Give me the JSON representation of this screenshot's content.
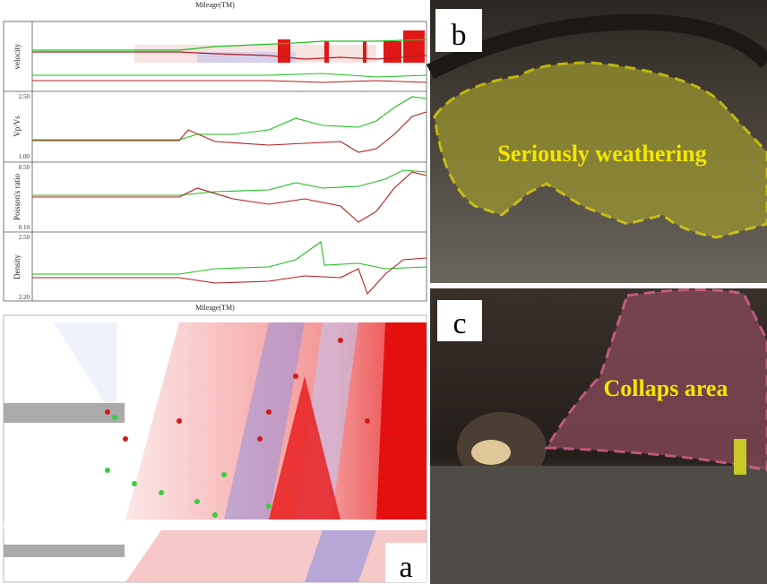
{
  "panel_a": {
    "label": "a",
    "top_axis_title": "Mileage(TM)",
    "bottom_axis_title": "Mileage(TM)",
    "strips": [
      {
        "name": "velocity"
      },
      {
        "name": "Vp/Vs",
        "top": "2.50",
        "bottom": "1.00"
      },
      {
        "name": "Poisson's ratio",
        "top": "0.50",
        "bottom": "0.10"
      },
      {
        "name": "Density",
        "top": "2.50",
        "bottom": "2.20"
      }
    ]
  },
  "panel_b": {
    "label": "b",
    "annotation": "Seriously weathering"
  },
  "panel_c": {
    "label": "c",
    "annotation": "Collaps area"
  }
}
